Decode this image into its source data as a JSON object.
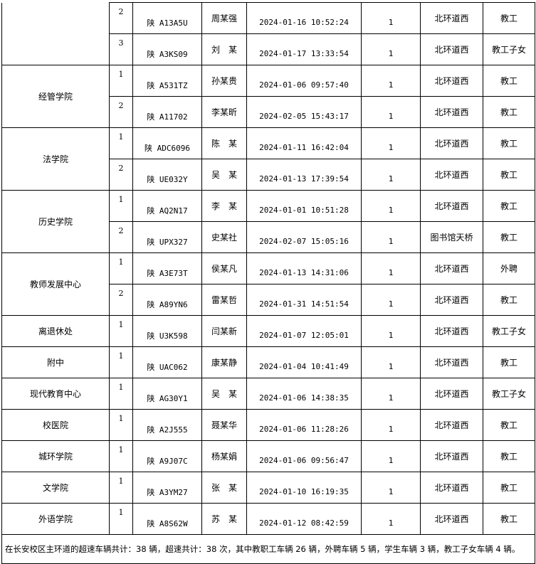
{
  "groups": [
    {
      "dept": "",
      "rows": [
        {
          "seq": "2",
          "plate": "陕 A13A5U",
          "name": "周某强",
          "time": "2024-01-16 10:52:24",
          "count": "1",
          "location": "北环道西",
          "type": "教工"
        },
        {
          "seq": "3",
          "plate": "陕 A3KS09",
          "name": "刘　某",
          "time": "2024-01-17 13:33:54",
          "count": "1",
          "location": "北环道西",
          "type": "教工子女"
        }
      ]
    },
    {
      "dept": "经管学院",
      "rows": [
        {
          "seq": "1",
          "plate": "陕 A531TZ",
          "name": "孙某贵",
          "time": "2024-01-06 09:57:40",
          "count": "1",
          "location": "北环道西",
          "type": "教工"
        },
        {
          "seq": "2",
          "plate": "陕 A11702",
          "name": "李某昕",
          "time": "2024-02-05 15:43:17",
          "count": "1",
          "location": "北环道西",
          "type": "教工"
        }
      ]
    },
    {
      "dept": "法学院",
      "rows": [
        {
          "seq": "1",
          "plate": "陕 ADC6096",
          "name": "陈　某",
          "time": "2024-01-11 16:42:04",
          "count": "1",
          "location": "北环道西",
          "type": "教工"
        },
        {
          "seq": "2",
          "plate": "陕 UE032Y",
          "name": "吴　某",
          "time": "2024-01-13 17:39:54",
          "count": "1",
          "location": "北环道西",
          "type": "教工"
        }
      ]
    },
    {
      "dept": "历史学院",
      "rows": [
        {
          "seq": "1",
          "plate": "陕 AQ2N17",
          "name": "李　某",
          "time": "2024-01-01 10:51:28",
          "count": "1",
          "location": "北环道西",
          "type": "教工"
        },
        {
          "seq": "2",
          "plate": "陕 UPX327",
          "name": "史某社",
          "time": "2024-02-07 15:05:16",
          "count": "1",
          "location": "图书馆天桥",
          "type": "教工"
        }
      ]
    },
    {
      "dept": "教师发展中心",
      "rows": [
        {
          "seq": "1",
          "plate": "陕 A3E73T",
          "name": "侯某凡",
          "time": "2024-01-13 14:31:06",
          "count": "1",
          "location": "北环道西",
          "type": "外聘"
        },
        {
          "seq": "2",
          "plate": "陕 A89YN6",
          "name": "雷某哲",
          "time": "2024-01-31 14:51:54",
          "count": "1",
          "location": "北环道西",
          "type": "教工"
        }
      ]
    },
    {
      "dept": "离退休处",
      "rows": [
        {
          "seq": "1",
          "plate": "陕 U3K598",
          "name": "闫某新",
          "time": "2024-01-07 12:05:01",
          "count": "1",
          "location": "北环道西",
          "type": "教工子女"
        }
      ]
    },
    {
      "dept": "附中",
      "rows": [
        {
          "seq": "1",
          "plate": "陕 UAC062",
          "name": "康某静",
          "time": "2024-01-04 10:41:49",
          "count": "1",
          "location": "北环道西",
          "type": "教工"
        }
      ]
    },
    {
      "dept": "现代教育中心",
      "rows": [
        {
          "seq": "1",
          "plate": "陕 AG30Y1",
          "name": "吴　某",
          "time": "2024-01-06 14:38:35",
          "count": "1",
          "location": "北环道西",
          "type": "教工子女"
        }
      ]
    },
    {
      "dept": "校医院",
      "rows": [
        {
          "seq": "1",
          "plate": "陕 A2J555",
          "name": "聂某华",
          "time": "2024-01-06 11:28:26",
          "count": "1",
          "location": "北环道西",
          "type": "教工"
        }
      ]
    },
    {
      "dept": "城环学院",
      "rows": [
        {
          "seq": "1",
          "plate": "陕 A9J07C",
          "name": "杨某娟",
          "time": "2024-01-06 09:56:47",
          "count": "1",
          "location": "北环道西",
          "type": "教工"
        }
      ]
    },
    {
      "dept": "文学院",
      "rows": [
        {
          "seq": "1",
          "plate": "陕 A3YM27",
          "name": "张　某",
          "time": "2024-01-10 16:19:35",
          "count": "1",
          "location": "北环道西",
          "type": "教工"
        }
      ]
    },
    {
      "dept": "外语学院",
      "rows": [
        {
          "seq": "1",
          "plate": "陕 A8S62W",
          "name": "苏　某",
          "time": "2024-01-12 08:42:59",
          "count": "1",
          "location": "北环道西",
          "type": "教工"
        }
      ]
    }
  ],
  "footer": "在长安校区主环道的超速车辆共计：38 辆，超速共计：38 次，其中教职工车辆 26 辆，外聘车辆 5 辆，学生车辆 3 辆，教工子女车辆 4 辆。"
}
